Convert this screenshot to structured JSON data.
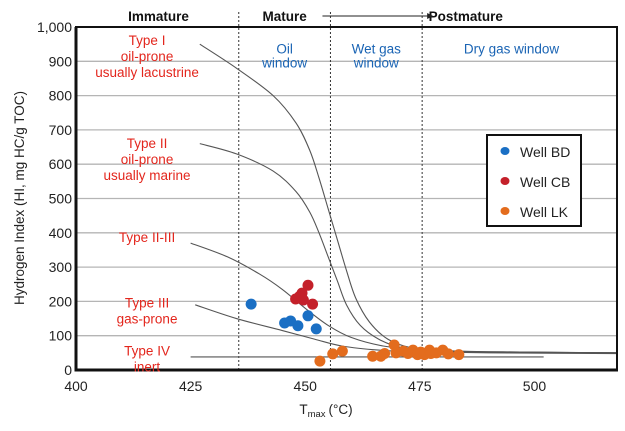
{
  "chart_data": {
    "type": "scatter",
    "title": "",
    "xlabel": "T",
    "xlabel_sub": "max",
    "xlabel_unit": "(°C)",
    "ylabel": "Hydrogen Index (HI, mg HC/g TOC)",
    "xlim": [
      400,
      518
    ],
    "ylim": [
      0,
      1000
    ],
    "x_ticks": [
      400,
      425,
      450,
      475,
      500
    ],
    "x_tick_labels": [
      "400",
      "425",
      "450",
      "475",
      "500"
    ],
    "y_ticks": [
      0,
      100,
      200,
      300,
      400,
      500,
      600,
      700,
      800,
      900,
      1000
    ],
    "y_tick_labels": [
      "0",
      "100",
      "200",
      "300",
      "400",
      "500",
      "600",
      "700",
      "800",
      "900",
      "1,000"
    ],
    "grid": "horizontal",
    "legend_position": "right",
    "maturity_boundaries": [
      435.5,
      455.5,
      475.5
    ],
    "zone_headers": [
      {
        "label": "Immature",
        "x": 418
      },
      {
        "label": "Mature",
        "x": 445.5
      },
      {
        "label": "Postmature",
        "x": 485
      }
    ],
    "mature_arrow": {
      "from": 455.5,
      "to": 475.5
    },
    "windows": [
      {
        "lines": [
          "Oil",
          "window"
        ],
        "x": 445.5,
        "y": 940
      },
      {
        "lines": [
          "Wet gas",
          "window"
        ],
        "x": 465.5,
        "y": 940
      },
      {
        "lines": [
          "Dry gas window"
        ],
        "x": 495,
        "y": 940
      }
    ],
    "kerogen_types": [
      {
        "lines": [
          "Type I",
          "oil-prone",
          "usually lacustrine"
        ],
        "x": 415.5,
        "y": 965
      },
      {
        "lines": [
          "Type II",
          "oil-prone",
          "usually marine"
        ],
        "x": 415.5,
        "y": 665
      },
      {
        "lines": [
          "Type II-III"
        ],
        "x": 415.5,
        "y": 390
      },
      {
        "lines": [
          "Type III",
          "gas-prone"
        ],
        "x": 415.5,
        "y": 200
      },
      {
        "lines": [
          "Type IV",
          "inert"
        ],
        "x": 415.5,
        "y": 60
      }
    ],
    "curves": [
      {
        "name": "Type I",
        "points": [
          [
            427,
            950
          ],
          [
            435,
            880
          ],
          [
            443,
            800
          ],
          [
            448,
            720
          ],
          [
            451,
            640
          ],
          [
            453,
            560
          ],
          [
            455,
            470
          ],
          [
            457,
            380
          ],
          [
            459,
            290
          ],
          [
            461,
            210
          ],
          [
            464,
            140
          ],
          [
            468,
            90
          ],
          [
            473,
            65
          ],
          [
            480,
            55
          ],
          [
            500,
            52
          ],
          [
            518,
            50
          ]
        ]
      },
      {
        "name": "Type II",
        "points": [
          [
            427,
            660
          ],
          [
            435,
            630
          ],
          [
            443,
            580
          ],
          [
            448,
            520
          ],
          [
            451,
            460
          ],
          [
            453,
            400
          ],
          [
            455,
            330
          ],
          [
            457,
            260
          ],
          [
            459,
            190
          ],
          [
            462,
            130
          ],
          [
            466,
            90
          ],
          [
            471,
            65
          ],
          [
            478,
            55
          ],
          [
            500,
            52
          ],
          [
            518,
            50
          ]
        ]
      },
      {
        "name": "Type II-III",
        "points": [
          [
            425,
            370
          ],
          [
            433,
            330
          ],
          [
            440,
            280
          ],
          [
            445,
            235
          ],
          [
            450,
            180
          ],
          [
            455,
            130
          ],
          [
            460,
            95
          ],
          [
            467,
            70
          ],
          [
            475,
            60
          ],
          [
            490,
            53
          ],
          [
            518,
            50
          ]
        ]
      },
      {
        "name": "Type III",
        "points": [
          [
            426,
            190
          ],
          [
            435,
            150
          ],
          [
            445,
            115
          ],
          [
            452,
            90
          ],
          [
            458,
            70
          ],
          [
            466,
            58
          ],
          [
            475,
            53
          ],
          [
            490,
            50
          ],
          [
            518,
            48
          ]
        ]
      },
      {
        "name": "Type IV",
        "points": [
          [
            425,
            38
          ],
          [
            502,
            38
          ]
        ]
      }
    ],
    "series": [
      {
        "name": "Well BD",
        "color": "#1a6fc4",
        "points": [
          [
            438.2,
            192
          ],
          [
            445.5,
            137
          ],
          [
            446.8,
            143
          ],
          [
            448.4,
            129
          ],
          [
            450.6,
            158
          ],
          [
            452.4,
            120
          ]
        ]
      },
      {
        "name": "Well CB",
        "color": "#c4202a",
        "points": [
          [
            450.6,
            247
          ],
          [
            449.3,
            224
          ],
          [
            448.7,
            214
          ],
          [
            447.9,
            207
          ],
          [
            449.6,
            204
          ],
          [
            451.6,
            192
          ]
        ]
      },
      {
        "name": "Well LK",
        "color": "#e36c1d",
        "points": [
          [
            453.2,
            26
          ],
          [
            456,
            47
          ],
          [
            458.1,
            55
          ],
          [
            464.7,
            40
          ],
          [
            466.5,
            40
          ],
          [
            467.3,
            48
          ],
          [
            469.4,
            73
          ],
          [
            469.8,
            50
          ],
          [
            471.4,
            55
          ],
          [
            472.4,
            48
          ],
          [
            473.5,
            58
          ],
          [
            474.5,
            45
          ],
          [
            475.2,
            52
          ],
          [
            476,
            45
          ],
          [
            477.1,
            58
          ],
          [
            477.4,
            48
          ],
          [
            478.6,
            50
          ],
          [
            480,
            58
          ],
          [
            481.2,
            47
          ],
          [
            483.5,
            45
          ]
        ]
      }
    ]
  }
}
